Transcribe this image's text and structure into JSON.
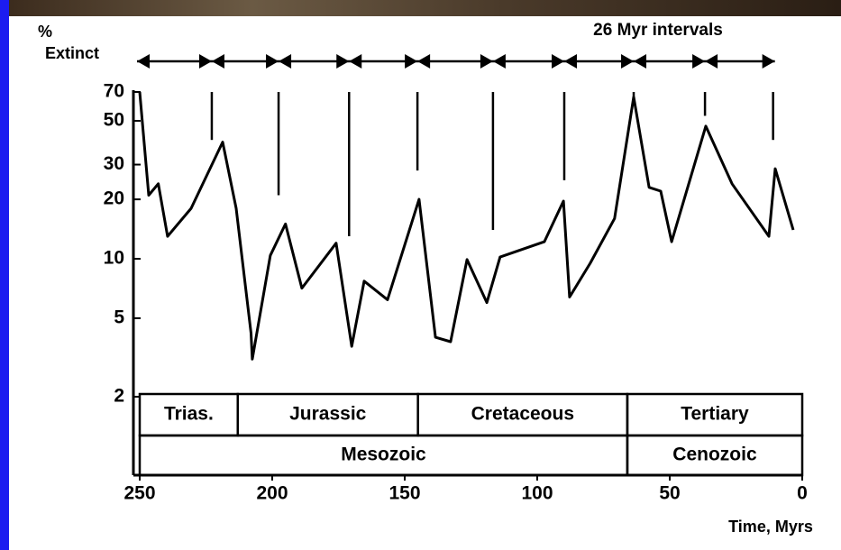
{
  "chart_data": {
    "type": "line",
    "y_label_lines": [
      "%",
      "Extinct"
    ],
    "annotation": "26 Myr intervals",
    "x_label": "Time, Myrs",
    "x": [
      250,
      246.6,
      243,
      239.5,
      230.6,
      218.7,
      213.6,
      208,
      207.5,
      200.7,
      195,
      188.8,
      175.9,
      170,
      165.3,
      156.5,
      144.6,
      138.4,
      132.7,
      126.5,
      119,
      114,
      97.3,
      90.1,
      87.8,
      80,
      70.8,
      63.6,
      57.8,
      53.4,
      49.3,
      36.4,
      26.5,
      12.6,
      10.2,
      3.4
    ],
    "values": [
      70,
      21,
      24,
      13,
      18,
      39,
      18,
      4.2,
      3.1,
      10.4,
      15,
      7.1,
      12,
      3.6,
      7.7,
      6.2,
      20,
      4,
      3.8,
      9.9,
      6,
      10.2,
      12.2,
      19.6,
      6.4,
      9.5,
      16,
      66,
      23,
      22,
      12.2,
      47,
      24,
      13,
      28.6,
      14
    ],
    "color": "#000000",
    "log_y": true,
    "xlim": [
      250,
      0
    ],
    "xticks": [
      250,
      200,
      150,
      100,
      50,
      0
    ],
    "ylim": [
      2,
      70
    ],
    "yticks": [
      2,
      5,
      10,
      20,
      30,
      50,
      70
    ],
    "intervals": {
      "x": [
        222.8,
        197.6,
        171,
        145.2,
        116.7,
        89.8,
        63.6,
        36.7,
        11
      ],
      "lower": [
        40,
        21,
        13,
        28,
        14,
        25,
        61,
        53,
        40
      ]
    },
    "periods": [
      {
        "name": "Trias.",
        "start": 250,
        "end": 213
      },
      {
        "name": "Jurassic",
        "start": 213,
        "end": 145
      },
      {
        "name": "Cretaceous",
        "start": 145,
        "end": 66
      },
      {
        "name": "Tertiary",
        "start": 66,
        "end": 0
      }
    ],
    "eras": [
      {
        "name": "Mesozoic",
        "start": 250,
        "end": 66
      },
      {
        "name": "Cenozoic",
        "start": 66,
        "end": 0
      }
    ]
  }
}
